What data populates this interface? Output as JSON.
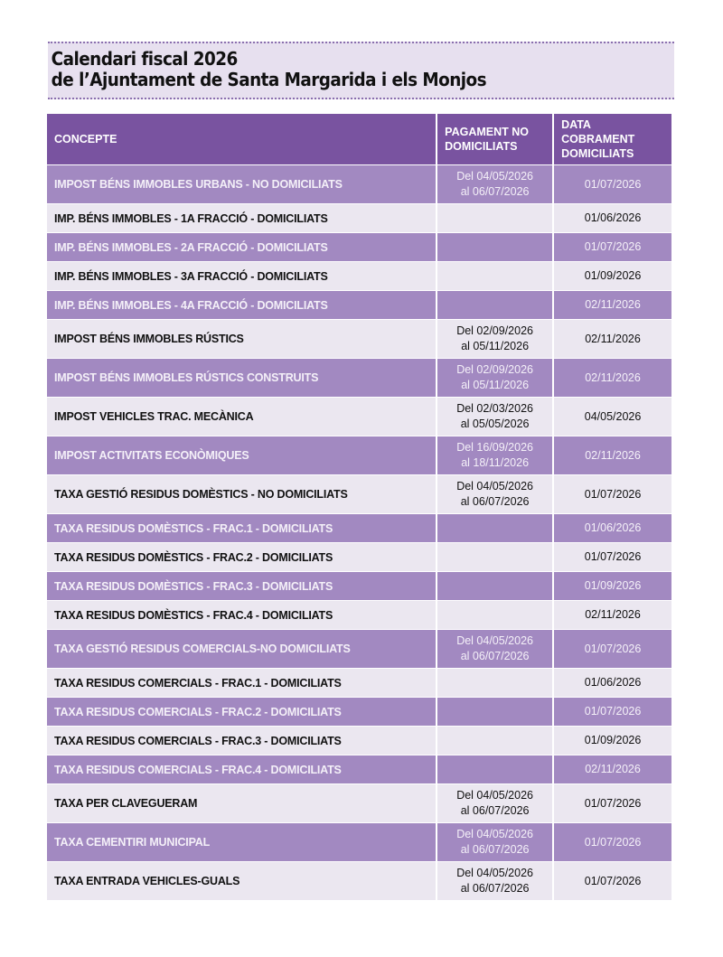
{
  "title": {
    "line1": "Calendari fiscal 2026",
    "line2": "de l’Ajuntament de Santa Margarida i els Monjos"
  },
  "colors": {
    "header": "#7953a0",
    "row_dark": "#a289c1",
    "row_light": "#ebe7f0",
    "title_bg": "#e7e0ef"
  },
  "table": {
    "headers": [
      "CONCEPTE",
      "PAGAMENT NO DOMICILIATS",
      "DATA COBRAMENT DOMICILIATS"
    ],
    "rows": [
      {
        "concepte": "IMPOST BÉNS IMMOBLES URBANS - NO DOMICILIATS",
        "pagament": [
          "Del 04/05/2026",
          "al 06/07/2026"
        ],
        "data": "01/07/2026"
      },
      {
        "concepte": "IMP. BÉNS IMMOBLES - 1A FRACCIÓ - DOMICILIATS",
        "pagament": [],
        "data": "01/06/2026"
      },
      {
        "concepte": "IMP. BÉNS IMMOBLES - 2A FRACCIÓ - DOMICILIATS",
        "pagament": [],
        "data": "01/07/2026"
      },
      {
        "concepte": "IMP. BÉNS IMMOBLES - 3A FRACCIÓ - DOMICILIATS",
        "pagament": [],
        "data": "01/09/2026"
      },
      {
        "concepte": "IMP. BÉNS IMMOBLES - 4A FRACCIÓ - DOMICILIATS",
        "pagament": [],
        "data": "02/11/2026"
      },
      {
        "concepte": "IMPOST BÉNS IMMOBLES RÚSTICS",
        "pagament": [
          "Del 02/09/2026",
          "al 05/11/2026"
        ],
        "data": "02/11/2026"
      },
      {
        "concepte": "IMPOST BÉNS IMMOBLES RÚSTICS CONSTRUITS",
        "pagament": [
          "Del 02/09/2026",
          "al 05/11/2026"
        ],
        "data": "02/11/2026"
      },
      {
        "concepte": "IMPOST VEHICLES TRAC. MECÀNICA",
        "pagament": [
          "Del 02/03/2026",
          "al 05/05/2026"
        ],
        "data": "04/05/2026"
      },
      {
        "concepte": "IMPOST ACTIVITATS ECONÒMIQUES",
        "pagament": [
          "Del 16/09/2026",
          "al 18/11/2026"
        ],
        "data": "02/11/2026"
      },
      {
        "concepte": "TAXA GESTIÓ RESIDUS DOMÈSTICS - NO DOMICILIATS",
        "pagament": [
          "Del 04/05/2026",
          "al 06/07/2026"
        ],
        "data": "01/07/2026"
      },
      {
        "concepte": "TAXA RESIDUS DOMÈSTICS - FRAC.1 - DOMICILIATS",
        "pagament": [],
        "data": "01/06/2026"
      },
      {
        "concepte": "TAXA RESIDUS DOMÈSTICS - FRAC.2 - DOMICILIATS",
        "pagament": [],
        "data": "01/07/2026"
      },
      {
        "concepte": "TAXA RESIDUS DOMÈSTICS - FRAC.3 - DOMICILIATS",
        "pagament": [],
        "data": "01/09/2026"
      },
      {
        "concepte": "TAXA RESIDUS DOMÈSTICS - FRAC.4 - DOMICILIATS",
        "pagament": [],
        "data": "02/11/2026"
      },
      {
        "concepte": "TAXA GESTIÓ RESIDUS COMERCIALS-NO DOMICILIATS",
        "pagament": [
          "Del 04/05/2026",
          "al 06/07/2026"
        ],
        "data": "01/07/2026"
      },
      {
        "concepte": "TAXA RESIDUS COMERCIALS - FRAC.1 - DOMICILIATS",
        "pagament": [],
        "data": "01/06/2026"
      },
      {
        "concepte": "TAXA RESIDUS COMERCIALS - FRAC.2 - DOMICILIATS",
        "pagament": [],
        "data": "01/07/2026"
      },
      {
        "concepte": "TAXA RESIDUS COMERCIALS - FRAC.3 - DOMICILIATS",
        "pagament": [],
        "data": "01/09/2026"
      },
      {
        "concepte": "TAXA RESIDUS COMERCIALS - FRAC.4 - DOMICILIATS",
        "pagament": [],
        "data": "02/11/2026"
      },
      {
        "concepte": "TAXA PER CLAVEGUERAM",
        "pagament": [
          "Del 04/05/2026",
          "al 06/07/2026"
        ],
        "data": "01/07/2026"
      },
      {
        "concepte": "TAXA CEMENTIRI MUNICIPAL",
        "pagament": [
          "Del 04/05/2026",
          "al 06/07/2026"
        ],
        "data": "01/07/2026"
      },
      {
        "concepte": "TAXA ENTRADA VEHICLES-GUALS",
        "pagament": [
          "Del 04/05/2026",
          "al 06/07/2026"
        ],
        "data": "01/07/2026"
      }
    ]
  }
}
